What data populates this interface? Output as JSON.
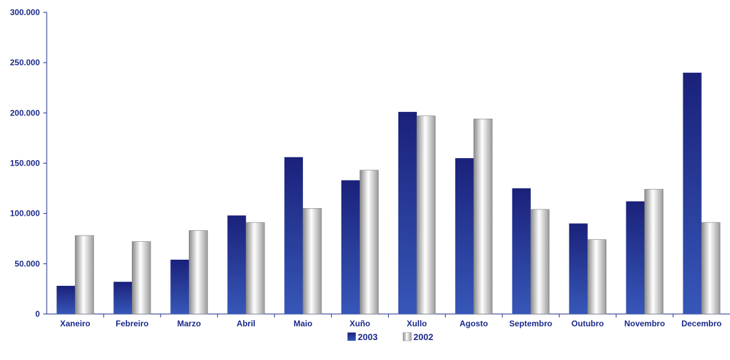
{
  "chart_data": {
    "type": "bar",
    "categories": [
      "Xaneiro",
      "Febreiro",
      "Marzo",
      "Abril",
      "Maio",
      "Xuño",
      "Xullo",
      "Agosto",
      "Septembro",
      "Outubro",
      "Novembro",
      "Decembro"
    ],
    "series": [
      {
        "name": "2003",
        "color": "#2a3ba8",
        "values": [
          28000,
          32000,
          54000,
          98000,
          156000,
          133000,
          201000,
          155000,
          125000,
          90000,
          112000,
          240000
        ]
      },
      {
        "name": "2002",
        "color": "#c8c8c8",
        "values": [
          78000,
          72000,
          83000,
          91000,
          105000,
          143000,
          197000,
          194000,
          104000,
          74000,
          124000,
          91000
        ]
      }
    ],
    "yticks": [
      "0",
      "50.000",
      "100.000",
      "150.000",
      "200.000",
      "250.000",
      "300.000"
    ],
    "ylim": [
      0,
      300000
    ],
    "title": "",
    "xlabel": "",
    "ylabel": "",
    "legend_position": "bottom-center",
    "grid": false
  }
}
